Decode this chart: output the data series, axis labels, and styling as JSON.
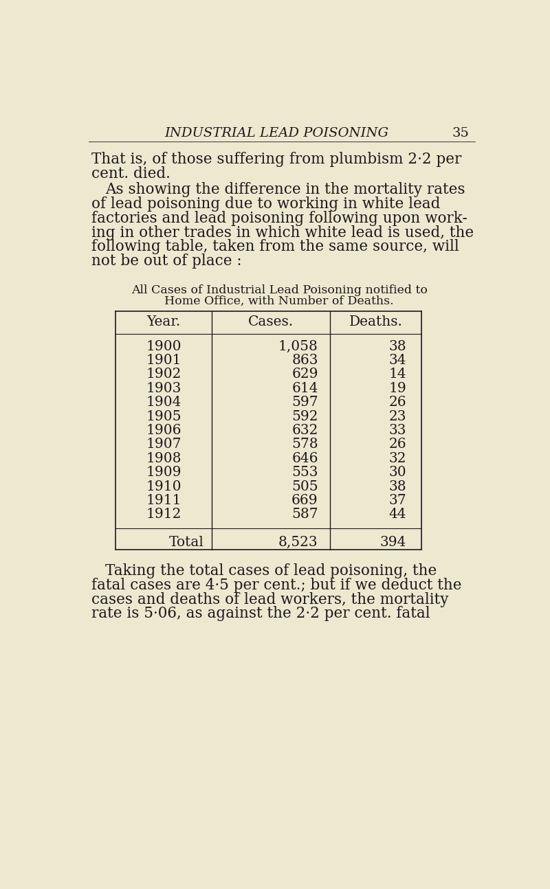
{
  "bg_color": "#EDE8D0",
  "page_header_italic": "INDUSTRIAL LEAD POISONING",
  "page_number": "35",
  "col_headers": [
    "Year.",
    "Cases.",
    "Deaths."
  ],
  "rows": [
    [
      "1900",
      "1,058",
      "38"
    ],
    [
      "1901",
      "863",
      "34"
    ],
    [
      "1902",
      "629",
      "14"
    ],
    [
      "1903",
      "614",
      "19"
    ],
    [
      "1904",
      "597",
      "26"
    ],
    [
      "1905",
      "592",
      "23"
    ],
    [
      "1906",
      "632",
      "33"
    ],
    [
      "1907",
      "578",
      "26"
    ],
    [
      "1908",
      "646",
      "32"
    ],
    [
      "1909",
      "553",
      "30"
    ],
    [
      "1910",
      "505",
      "38"
    ],
    [
      "1911",
      "669",
      "37"
    ],
    [
      "1912",
      "587",
      "44"
    ]
  ],
  "total_row": [
    "Total",
    "8,523",
    "394"
  ],
  "text_color": "#1a1a1a",
  "font_size_body": 15.5,
  "font_size_table_title": 12.5,
  "font_size_table": 14.5,
  "font_size_header": 14.0,
  "table_title_line1": "All Cases of Industrial Lead Poisoning notified to",
  "table_title_line2": "Home Office, with Number of Deaths.",
  "p1_lines": [
    "That is, of those suffering from plumbism 2·2 per",
    "cent. died."
  ],
  "p2_lines": [
    "As showing the difference in the mortality rates",
    "of lead poisoning due to working in white lead",
    "factories and lead poisoning following upon work-",
    "ing in other trades in which white lead is used, the",
    "following table, taken from the same source, will",
    "not be out of place :"
  ],
  "p3_lines": [
    "Taking the total cases of lead poisoning, the",
    "fatal cases are 4·5 per cent.; but if we deduct the",
    "cases and deaths of lead workers, the mortality",
    "rate is 5·06, as against the 2·2 per cent. fatal"
  ]
}
